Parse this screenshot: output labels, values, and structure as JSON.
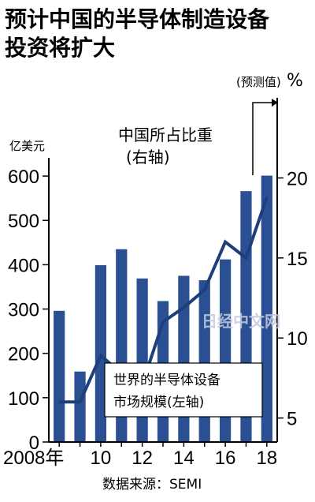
{
  "chart_data": {
    "type": "bar+line",
    "title_lines": [
      "预计中国的半导体制造设备",
      "投资将扩大"
    ],
    "categories": [
      "2008",
      "2009",
      "2010",
      "2011",
      "2012",
      "2013",
      "2014",
      "2015",
      "2016",
      "2017",
      "2018"
    ],
    "x_tick_labels": [
      "2008年",
      "10",
      "12",
      "14",
      "16",
      "18"
    ],
    "bars": {
      "name_lines": [
        "世界的半导体设备",
        "市场规模(左轴)"
      ],
      "unit": "亿美元",
      "values": [
        296,
        159,
        399,
        435,
        369,
        318,
        375,
        365,
        412,
        566,
        601
      ],
      "ylim": [
        0,
        650
      ],
      "ticks": [
        0,
        100,
        200,
        300,
        400,
        500,
        600
      ]
    },
    "line": {
      "name_lines": [
        "中国所占比重",
        "(右轴)"
      ],
      "unit": "%",
      "values": [
        6.0,
        6.0,
        8.9,
        7.8,
        7.1,
        11.0,
        11.9,
        13.0,
        16.0,
        15.0,
        18.8
      ],
      "ylim": [
        3.5,
        21.5
      ],
      "ticks": [
        5,
        10,
        15,
        20
      ]
    },
    "forecast_label": "(预测值)",
    "source": "数据来源：SEMI",
    "watermark": "日经中文网",
    "colors": {
      "bar": "#2b4f93",
      "line": "#1f3f7a",
      "axis": "#000000"
    }
  }
}
